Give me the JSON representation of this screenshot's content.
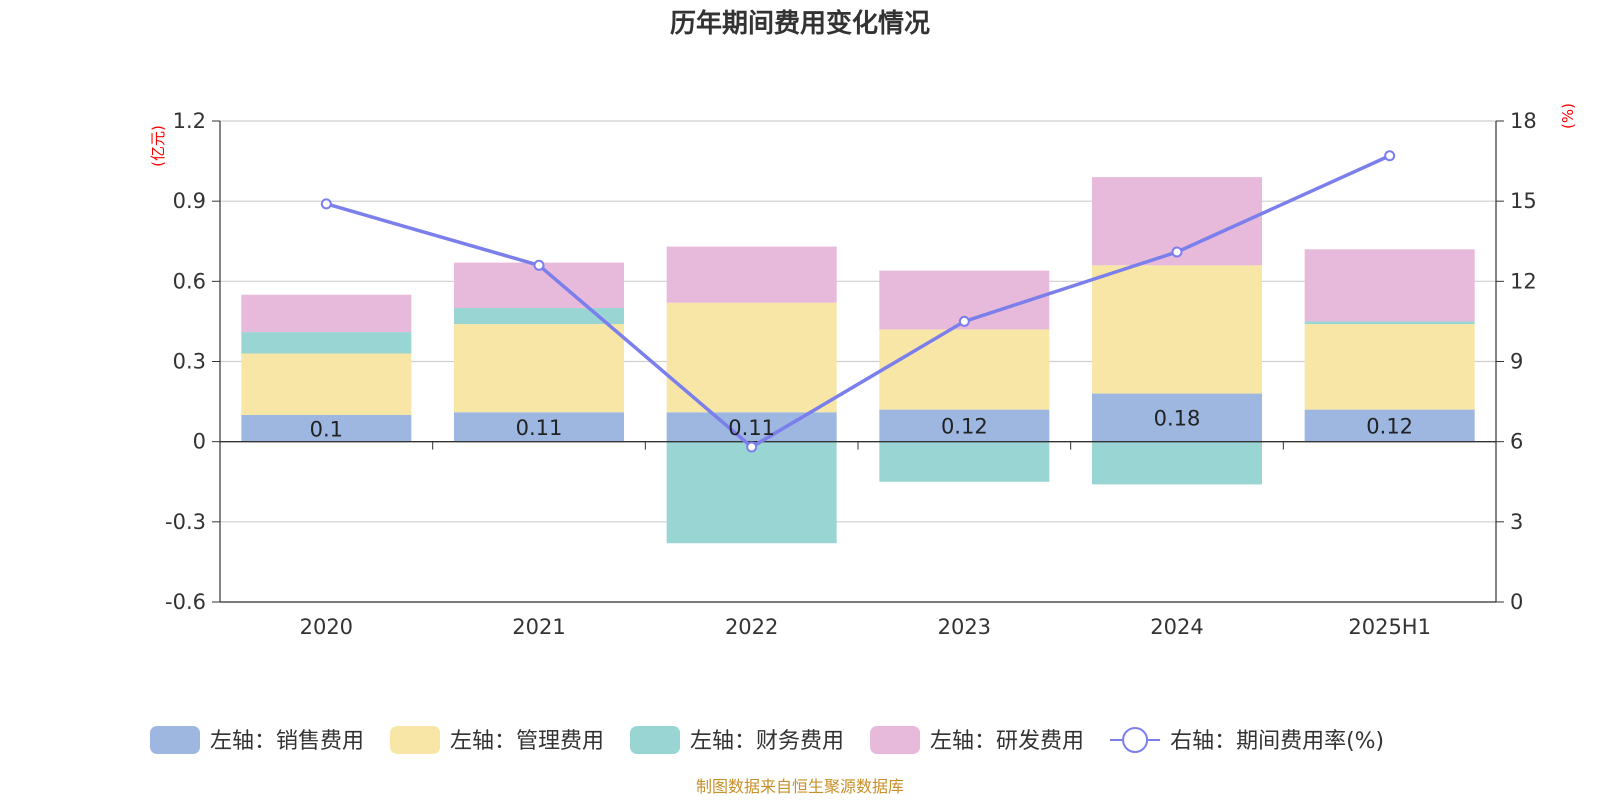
{
  "chart_data": {
    "type": "bar",
    "title": "历年期间费用变化情况",
    "categories": [
      "2020",
      "2021",
      "2022",
      "2023",
      "2024",
      "2025H1"
    ],
    "y_left": {
      "unit": "(亿元)",
      "ticks": [
        "1.2",
        "0.9",
        "0.6",
        "0.3",
        "0",
        "-0.3",
        "-0.6"
      ],
      "ylim": [
        -0.6,
        1.2
      ]
    },
    "y_right": {
      "unit": "(%)",
      "ticks": [
        "18",
        "15",
        "12",
        "9",
        "6",
        "3",
        "0"
      ],
      "ylim": [
        0,
        18
      ]
    },
    "grid": true,
    "legend_position": "bottom",
    "series": [
      {
        "name": "左轴：销售费用",
        "type": "bar",
        "axis": "left",
        "color": "#9db7e1",
        "values": [
          0.1,
          0.11,
          0.11,
          0.12,
          0.18,
          0.12
        ],
        "labels": [
          "0.1",
          "0.11",
          "0.11",
          "0.12",
          "0.18",
          "0.12"
        ]
      },
      {
        "name": "左轴：管理费用",
        "type": "bar",
        "axis": "left",
        "color": "#f8e6a6",
        "values": [
          0.23,
          0.33,
          0.41,
          0.3,
          0.48,
          0.32
        ]
      },
      {
        "name": "左轴：财务费用",
        "type": "bar",
        "axis": "left",
        "color": "#98d5d3",
        "values": [
          0.08,
          0.06,
          -0.38,
          -0.15,
          -0.16,
          0.01
        ]
      },
      {
        "name": "左轴：研发费用",
        "type": "bar",
        "axis": "left",
        "color": "#e7b9da",
        "values": [
          0.14,
          0.17,
          0.21,
          0.22,
          0.33,
          0.27
        ]
      },
      {
        "name": "右轴：期间费用率(%)",
        "type": "line",
        "axis": "right",
        "color": "#7b7fec",
        "values": [
          14.9,
          12.6,
          5.8,
          10.5,
          13.1,
          16.7
        ]
      }
    ]
  },
  "source_note": "制图数据来自恒生聚源数据库"
}
